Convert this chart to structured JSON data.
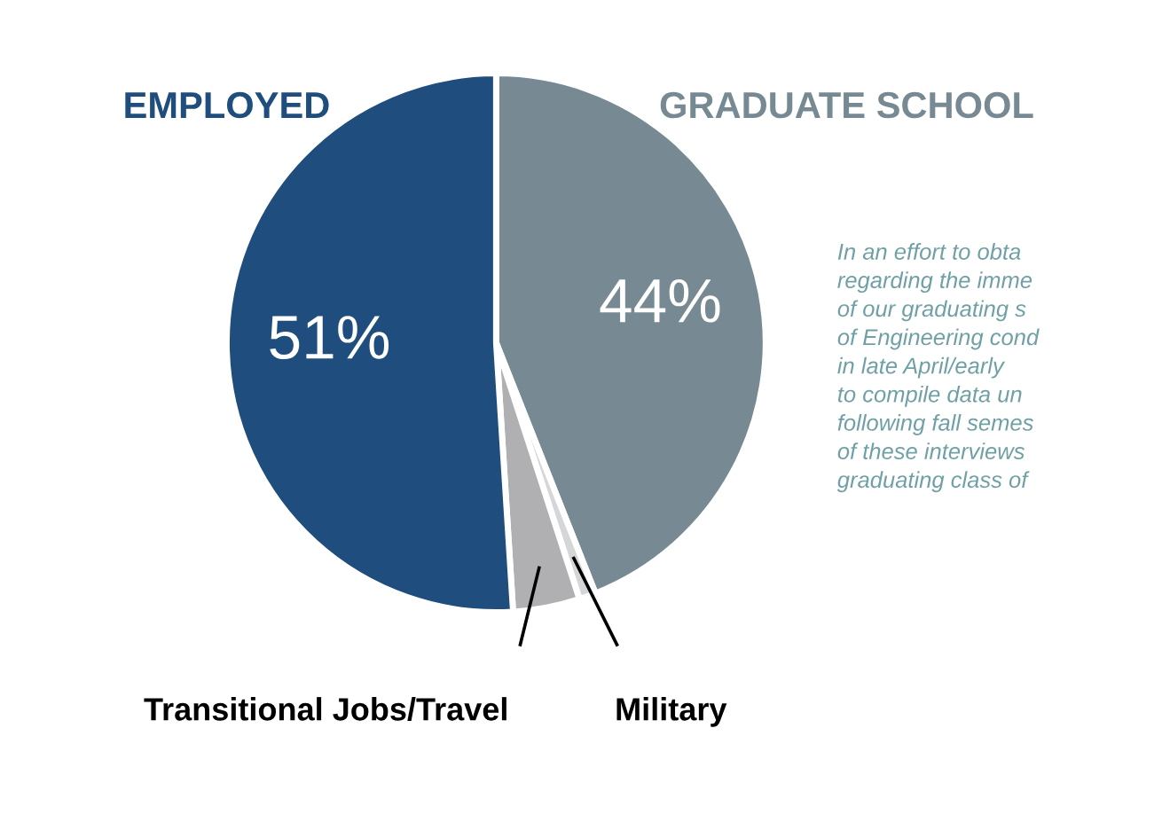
{
  "chart_data": {
    "type": "pie",
    "categories": [
      "GRADUATE SCHOOL",
      "Military",
      "Transitional Jobs/Travel",
      "EMPLOYED"
    ],
    "values": [
      44,
      1,
      4,
      51
    ],
    "colors": [
      "#778a93",
      "#d5d6d8",
      "#b0b0b3",
      "#1f4e7e"
    ],
    "value_labels": [
      "44%",
      null,
      null,
      "51%"
    ],
    "annotations": [
      "In an effort to obta\nregarding the imme\nof our graduating s\nof Engineering cond\nin late April/early\nto compile data un\nfollowing fall semes\nof these interviews\ngraduating class of"
    ]
  }
}
